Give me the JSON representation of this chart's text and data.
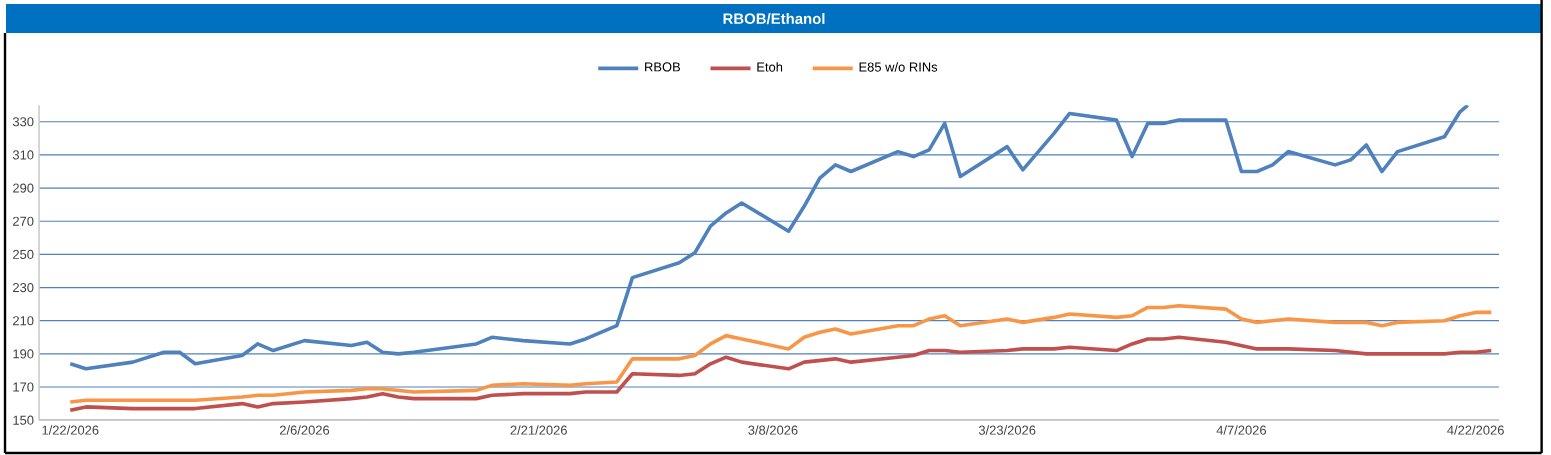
{
  "chart_data": {
    "type": "line",
    "title": "RBOB/Ethanol",
    "x": [
      "2026-01-22",
      "2026-01-23",
      "2026-01-26",
      "2026-01-28",
      "2026-01-29",
      "2026-01-30",
      "2026-02-02",
      "2026-02-03",
      "2026-02-04",
      "2026-02-06",
      "2026-02-09",
      "2026-02-10",
      "2026-02-11",
      "2026-02-12",
      "2026-02-13",
      "2026-02-17",
      "2026-02-18",
      "2026-02-20",
      "2026-02-23",
      "2026-02-24",
      "2026-02-26",
      "2026-02-27",
      "2026-03-02",
      "2026-03-03",
      "2026-03-04",
      "2026-03-05",
      "2026-03-06",
      "2026-03-09",
      "2026-03-10",
      "2026-03-11",
      "2026-03-12",
      "2026-03-13",
      "2026-03-16",
      "2026-03-17",
      "2026-03-18",
      "2026-03-19",
      "2026-03-20",
      "2026-03-23",
      "2026-03-24",
      "2026-03-26",
      "2026-03-27",
      "2026-03-30",
      "2026-03-31",
      "2026-04-01",
      "2026-04-02",
      "2026-04-03",
      "2026-04-06",
      "2026-04-07",
      "2026-04-08",
      "2026-04-09",
      "2026-04-10",
      "2026-04-13",
      "2026-04-14",
      "2026-04-15",
      "2026-04-16",
      "2026-04-17",
      "2026-04-20",
      "2026-04-21",
      "2026-04-22",
      "2026-04-23"
    ],
    "series": [
      {
        "name": "RBOB",
        "color": "#4f81bd",
        "x": [
          "2026-01-22",
          "2026-01-23",
          "2026-01-26",
          "2026-01-28",
          "2026-01-29",
          "2026-01-30",
          "2026-02-02",
          "2026-02-03",
          "2026-02-04",
          "2026-02-06",
          "2026-02-09",
          "2026-02-10",
          "2026-02-11",
          "2026-02-12",
          "2026-02-13",
          "2026-02-17",
          "2026-02-18",
          "2026-02-20",
          "2026-02-23",
          "2026-02-24",
          "2026-02-26",
          "2026-02-27",
          "2026-03-02",
          "2026-03-03",
          "2026-03-04",
          "2026-03-05",
          "2026-03-06",
          "2026-03-09",
          "2026-03-10",
          "2026-03-11",
          "2026-03-12",
          "2026-03-13",
          "2026-03-16",
          "2026-03-17",
          "2026-03-18",
          "2026-03-19",
          "2026-03-20",
          "2026-03-23",
          "2026-03-24",
          "2026-03-26",
          "2026-03-27",
          "2026-03-30",
          "2026-03-31",
          "2026-04-01",
          "2026-04-02",
          "2026-04-03",
          "2026-04-06",
          "2026-04-07",
          "2026-04-08",
          "2026-04-09",
          "2026-04-10",
          "2026-04-13",
          "2026-04-14",
          "2026-04-15",
          "2026-04-16",
          "2026-04-17",
          "2026-04-20",
          "2026-04-21",
          "2026-04-21T12:00"
        ],
        "values": [
          184,
          181,
          185,
          191,
          191,
          184,
          189,
          196,
          192,
          198,
          195,
          197,
          191,
          190,
          191,
          196,
          200,
          198,
          196,
          199,
          207,
          236,
          245,
          251,
          267,
          275,
          281,
          264,
          279,
          296,
          304,
          300,
          312,
          309,
          313,
          329,
          297,
          315,
          301,
          323,
          335,
          331,
          309,
          329,
          329,
          331,
          331,
          300,
          300,
          304,
          312,
          304,
          307,
          316,
          300,
          312,
          321,
          336,
          340
        ]
      },
      {
        "name": "Etoh",
        "color": "#c0504d",
        "values": [
          156,
          158,
          157,
          157,
          157,
          157,
          160,
          158,
          160,
          161,
          163,
          164,
          166,
          164,
          163,
          163,
          165,
          166,
          166,
          167,
          167,
          178,
          177,
          178,
          184,
          188,
          185,
          181,
          185,
          186,
          187,
          185,
          188,
          189,
          192,
          192,
          191,
          192,
          193,
          193,
          194,
          192,
          196,
          199,
          199,
          200,
          197,
          195,
          193,
          193,
          193,
          192,
          191,
          190,
          190,
          190,
          190,
          191,
          191,
          192
        ]
      },
      {
        "name": "E85 w/o RINs",
        "color": "#f79646",
        "values": [
          161,
          162,
          162,
          162,
          162,
          162,
          164,
          165,
          165,
          167,
          168,
          169,
          169,
          168,
          167,
          168,
          171,
          172,
          171,
          172,
          173,
          187,
          187,
          189,
          196,
          201,
          199,
          193,
          200,
          203,
          205,
          202,
          207,
          207,
          211,
          213,
          207,
          211,
          209,
          212,
          214,
          212,
          213,
          218,
          218,
          219,
          217,
          211,
          209,
          210,
          211,
          209,
          209,
          209,
          207,
          209,
          210,
          213,
          215,
          215
        ]
      }
    ],
    "xlim": [
      "2026-01-20",
      "2026-04-23T12:00"
    ],
    "xticks": [
      {
        "value": "2026-01-22",
        "label": "1/22/2026"
      },
      {
        "value": "2026-02-06",
        "label": "2/6/2026"
      },
      {
        "value": "2026-02-21",
        "label": "2/21/2026"
      },
      {
        "value": "2026-03-08",
        "label": "3/8/2026"
      },
      {
        "value": "2026-03-23",
        "label": "3/23/2026"
      },
      {
        "value": "2026-04-07",
        "label": "4/7/2026"
      },
      {
        "value": "2026-04-22",
        "label": "4/22/2026"
      }
    ],
    "ylim": [
      150,
      340
    ],
    "yticks": [
      150,
      170,
      190,
      210,
      230,
      250,
      270,
      290,
      310,
      330
    ],
    "grid": "y",
    "legend": "top"
  }
}
